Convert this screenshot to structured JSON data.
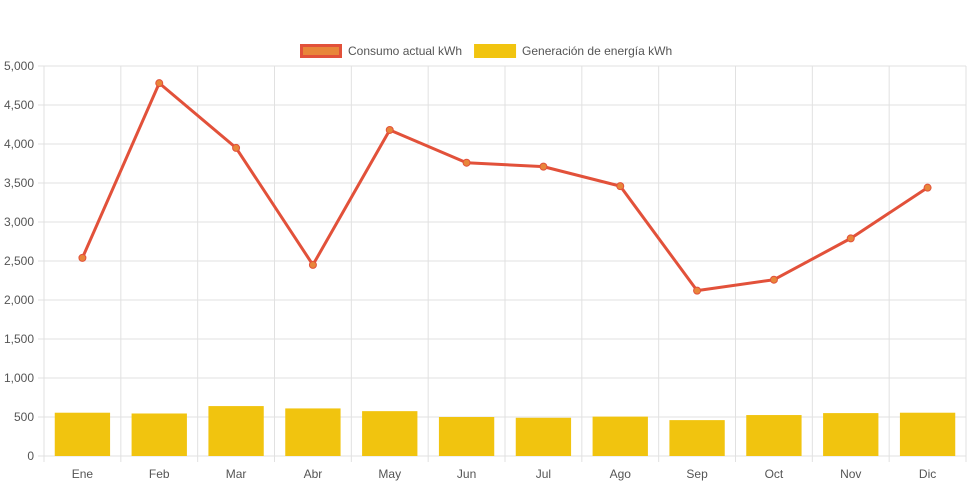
{
  "chart_data": {
    "type": "bar",
    "categories": [
      "Ene",
      "Feb",
      "Mar",
      "Abr",
      "May",
      "Jun",
      "Jul",
      "Ago",
      "Sep",
      "Oct",
      "Nov",
      "Dic"
    ],
    "series": [
      {
        "name": "Consumo actual kWh",
        "type": "line",
        "color": "#e2513a",
        "point_color": "#e8863a",
        "values": [
          2540,
          4780,
          3950,
          2450,
          4180,
          3760,
          3710,
          3460,
          2120,
          2260,
          2790,
          3440
        ]
      },
      {
        "name": "Generación de energía kWh",
        "type": "bar",
        "color": "#f1c40f",
        "values": [
          555,
          545,
          640,
          610,
          575,
          500,
          490,
          505,
          460,
          525,
          550,
          555
        ]
      }
    ],
    "ylim": [
      0,
      5000
    ],
    "yticks": [
      "0",
      "500",
      "1,000",
      "1,500",
      "2,000",
      "2,500",
      "3,000",
      "3,500",
      "4,000",
      "4,500",
      "5,000"
    ],
    "ytick_values": [
      0,
      500,
      1000,
      1500,
      2000,
      2500,
      3000,
      3500,
      4000,
      4500,
      5000
    ],
    "grid": true,
    "legend_position": "top-center"
  }
}
